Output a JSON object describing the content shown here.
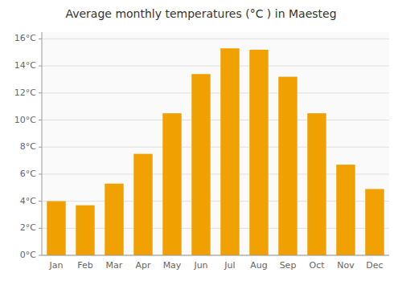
{
  "chart_data": {
    "type": "bar",
    "title": "Average monthly temperatures (°C ) in Maesteg",
    "categories": [
      "Jan",
      "Feb",
      "Mar",
      "Apr",
      "May",
      "Jun",
      "Jul",
      "Aug",
      "Sep",
      "Oct",
      "Nov",
      "Dec"
    ],
    "values": [
      4.0,
      3.7,
      5.3,
      7.5,
      10.5,
      13.4,
      15.3,
      15.2,
      13.2,
      10.5,
      6.7,
      4.9
    ],
    "color": "#F0A000",
    "ylim": [
      0,
      16.5
    ],
    "yticks": [
      {
        "value": 0,
        "label": "0°C"
      },
      {
        "value": 2,
        "label": "2°C"
      },
      {
        "value": 4,
        "label": "4°C"
      },
      {
        "value": 6,
        "label": "6°C"
      },
      {
        "value": 8,
        "label": "8°C"
      },
      {
        "value": 10,
        "label": "10°C"
      },
      {
        "value": 12,
        "label": "12°C"
      },
      {
        "value": 14,
        "label": "14°C"
      },
      {
        "value": 16,
        "label": "16°C"
      }
    ],
    "grid": true
  }
}
